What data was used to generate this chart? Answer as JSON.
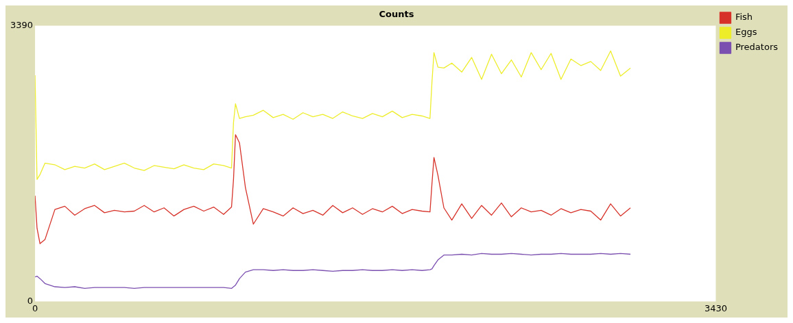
{
  "chart_data": {
    "type": "line",
    "title": "Counts",
    "x": [
      0,
      10,
      25,
      50,
      100,
      150,
      200,
      250,
      300,
      350,
      400,
      450,
      500,
      550,
      600,
      650,
      700,
      750,
      800,
      850,
      900,
      950,
      990,
      1000,
      1010,
      1030,
      1060,
      1100,
      1150,
      1200,
      1250,
      1300,
      1350,
      1400,
      1450,
      1500,
      1550,
      1600,
      1650,
      1700,
      1750,
      1800,
      1850,
      1900,
      1950,
      1990,
      2000,
      2010,
      2030,
      2060,
      2100,
      2150,
      2200,
      2250,
      2300,
      2350,
      2400,
      2450,
      2500,
      2550,
      2600,
      2650,
      2700,
      2750,
      2800,
      2850,
      2900,
      2950,
      3000
    ],
    "series": [
      {
        "name": "Fish",
        "color": "#d73229",
        "values": [
          1300,
          900,
          710,
          760,
          1130,
          1170,
          1060,
          1140,
          1180,
          1090,
          1120,
          1100,
          1110,
          1180,
          1100,
          1150,
          1050,
          1130,
          1170,
          1110,
          1160,
          1070,
          1160,
          1500,
          2050,
          1950,
          1400,
          950,
          1140,
          1100,
          1050,
          1150,
          1080,
          1120,
          1060,
          1180,
          1090,
          1150,
          1070,
          1140,
          1100,
          1170,
          1080,
          1130,
          1110,
          1100,
          1450,
          1770,
          1550,
          1150,
          1000,
          1200,
          1020,
          1180,
          1060,
          1210,
          1040,
          1150,
          1100,
          1120,
          1060,
          1140,
          1090,
          1130,
          1110,
          1000,
          1200,
          1050,
          1150
        ]
      },
      {
        "name": "Eggs",
        "color": "#eded2a",
        "values": [
          2780,
          1500,
          1560,
          1700,
          1680,
          1620,
          1660,
          1640,
          1690,
          1620,
          1660,
          1700,
          1640,
          1610,
          1670,
          1650,
          1630,
          1680,
          1640,
          1620,
          1690,
          1670,
          1640,
          2200,
          2430,
          2250,
          2270,
          2290,
          2350,
          2260,
          2300,
          2240,
          2320,
          2270,
          2300,
          2250,
          2330,
          2280,
          2250,
          2310,
          2270,
          2340,
          2260,
          2300,
          2280,
          2250,
          2700,
          3060,
          2880,
          2870,
          2930,
          2820,
          3000,
          2730,
          3040,
          2800,
          2970,
          2760,
          3060,
          2850,
          3050,
          2730,
          2980,
          2900,
          2950,
          2840,
          3080,
          2770,
          2870
        ]
      },
      {
        "name": "Predators",
        "color": "#7b4fb0",
        "values": [
          300,
          310,
          280,
          220,
          180,
          170,
          180,
          160,
          170,
          170,
          170,
          170,
          160,
          170,
          170,
          170,
          170,
          170,
          170,
          170,
          170,
          170,
          160,
          180,
          200,
          280,
          360,
          390,
          390,
          380,
          390,
          380,
          380,
          390,
          380,
          370,
          380,
          380,
          390,
          380,
          380,
          390,
          380,
          390,
          380,
          390,
          400,
          440,
          510,
          570,
          570,
          580,
          570,
          590,
          580,
          580,
          590,
          580,
          570,
          580,
          580,
          590,
          580,
          580,
          580,
          590,
          580,
          590,
          580
        ]
      }
    ],
    "xlim": [
      0,
      3430
    ],
    "xticks": [
      0,
      3430
    ],
    "ylim": [
      0,
      3390
    ],
    "yticks": [
      0,
      3390
    ],
    "grid": false,
    "legend": "right",
    "marker": "none",
    "line_style": "solid"
  }
}
